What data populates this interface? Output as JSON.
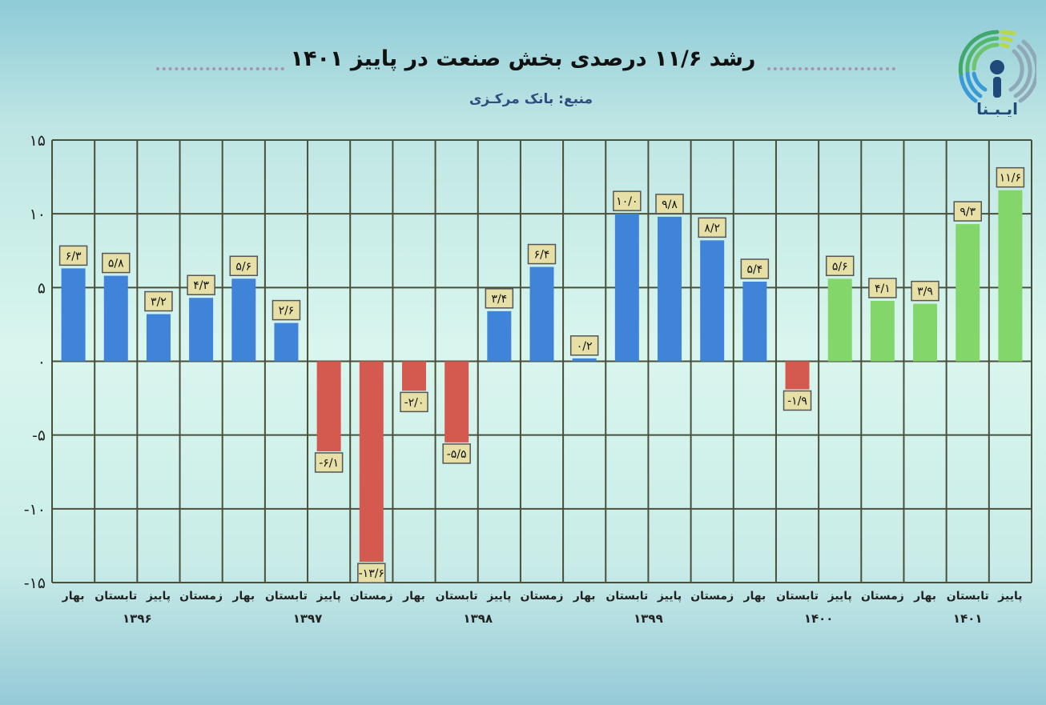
{
  "title": "رشد ۱۱/۶ درصدی بخش صنعت در پاییز ۱۴۰۱",
  "subtitle": "منبع: بانک مرکـزی",
  "logo_text": "ایـبِـنا",
  "colors": {
    "positive": "#3f84d9",
    "negative": "#d45a50",
    "highlight": "#82d66a",
    "label_box": "#e6dfa6",
    "grid": "#4a4f3a"
  },
  "chart_data": {
    "type": "bar",
    "title": "رشد ۱۱/۶ درصدی بخش صنعت در پاییز ۱۴۰۱",
    "xlabel": "",
    "ylabel": "",
    "ylim": [
      -15,
      15
    ],
    "grid": true,
    "yticks": [
      15,
      10,
      5,
      0,
      -5,
      -10,
      -15
    ],
    "ytick_labels": [
      "۱۵",
      "۱۰",
      "۵",
      "۰",
      "-۵",
      "-۱۰",
      "-۱۵"
    ],
    "categories": [
      "بهار",
      "تابستان",
      "پاییز",
      "زمستان",
      "بهار",
      "تابستان",
      "پاییز",
      "زمستان",
      "بهار",
      "تابستان",
      "پاییز",
      "زمستان",
      "بهار",
      "تابستان",
      "پاییز",
      "زمستان",
      "بهار",
      "تابستان",
      "پاییز",
      "زمستان",
      "بهار",
      "تابستان",
      "پاییز"
    ],
    "years": [
      {
        "label": "۱۳۹۶",
        "start": 0,
        "end": 3
      },
      {
        "label": "۱۳۹۷",
        "start": 4,
        "end": 7
      },
      {
        "label": "۱۳۹۸",
        "start": 8,
        "end": 11
      },
      {
        "label": "۱۳۹۹",
        "start": 12,
        "end": 15
      },
      {
        "label": "۱۴۰۰",
        "start": 16,
        "end": 19
      },
      {
        "label": "۱۴۰۱",
        "start": 20,
        "end": 22
      }
    ],
    "values": [
      6.3,
      5.8,
      3.2,
      4.3,
      5.6,
      2.6,
      -6.1,
      -13.6,
      -2.0,
      -5.5,
      3.4,
      6.4,
      0.2,
      10.0,
      9.8,
      8.2,
      5.4,
      -1.9,
      5.6,
      4.1,
      3.9,
      9.3,
      11.6
    ],
    "data_labels": [
      "۶/۳",
      "۵/۸",
      "۳/۲",
      "۴/۳",
      "۵/۶",
      "۲/۶",
      "-۶/۱",
      "-۱۳/۶",
      "-۲/۰",
      "-۵/۵",
      "۳/۴",
      "۶/۴",
      "۰/۲",
      "۱۰/۰",
      "۹/۸",
      "۸/۲",
      "۵/۴",
      "-۱/۹",
      "۵/۶",
      "۴/۱",
      "۳/۹",
      "۹/۳",
      "۱۱/۶"
    ],
    "highlight_from_index": 18
  }
}
